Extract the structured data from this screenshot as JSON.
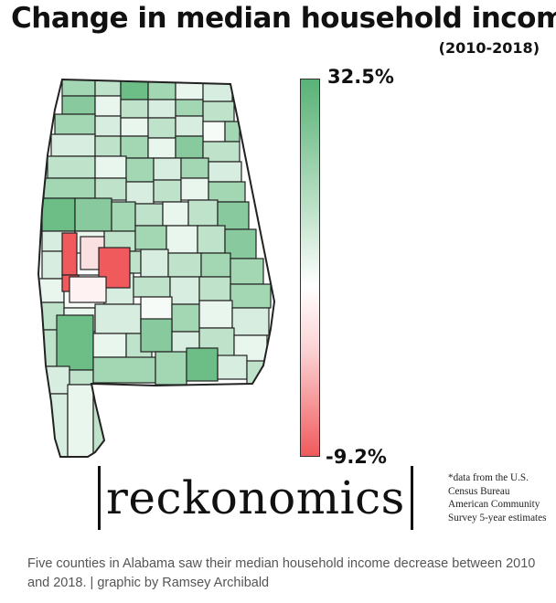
{
  "header": {
    "title": "Change in median household income",
    "subtitle": "(2010-2018)"
  },
  "legend": {
    "max_label": "32.5%",
    "min_label": "-9.2%",
    "max_color": "#58b276",
    "mid_color": "#ffffff",
    "min_color": "#f05a5c"
  },
  "map": {
    "region": "Alabama",
    "decrease_county_count": 5
  },
  "brand": {
    "name": "reckonomics"
  },
  "source_note": {
    "lines": [
      "*data from the U.S.",
      "Census Bureau",
      "American Community",
      "Survey 5-year estimates"
    ]
  },
  "caption": {
    "text": "Five counties in Alabama saw their median household income decrease between 2010 and 2018. | graphic by Ramsey Archibald"
  }
}
